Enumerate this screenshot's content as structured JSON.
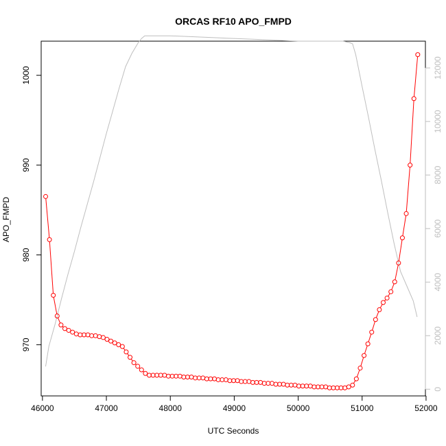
{
  "chart_data": {
    "type": "line",
    "title": "ORCAS RF10 APO_FMPD",
    "xlabel": "UTC Seconds",
    "ylabel": "APO_FMPD",
    "xlim": [
      45980,
      51990
    ],
    "ylim": [
      964.3,
      1003.8
    ],
    "y2lim": [
      -250,
      13000
    ],
    "x_ticks": [
      46000,
      47000,
      48000,
      49000,
      50000,
      51000,
      52000
    ],
    "y_ticks": [
      970,
      980,
      990,
      1000
    ],
    "y2_ticks": [
      0,
      2000,
      4000,
      6000,
      8000,
      10000,
      12000
    ],
    "grid": false,
    "colors": {
      "primary": "#ff0000",
      "secondary": "#bebebe",
      "axes": "#000000"
    },
    "series": [
      {
        "axis": "left",
        "style": "points-lines",
        "x": [
          46050,
          46110,
          46170,
          46230,
          46290,
          46350,
          46410,
          46470,
          46530,
          46590,
          46650,
          46710,
          46770,
          46830,
          46890,
          46950,
          47010,
          47070,
          47130,
          47190,
          47250,
          47310,
          47370,
          47430,
          47490,
          47550,
          47610,
          47670,
          47730,
          47790,
          47850,
          47910,
          47970,
          48030,
          48090,
          48150,
          48210,
          48270,
          48330,
          48390,
          48450,
          48510,
          48570,
          48630,
          48690,
          48750,
          48810,
          48870,
          48930,
          48990,
          49050,
          49110,
          49170,
          49230,
          49290,
          49350,
          49410,
          49470,
          49530,
          49590,
          49650,
          49710,
          49770,
          49830,
          49890,
          49950,
          50010,
          50070,
          50130,
          50190,
          50250,
          50310,
          50370,
          50430,
          50490,
          50550,
          50610,
          50670,
          50730,
          50790,
          50850,
          50910,
          50970,
          51030,
          51090,
          51150,
          51210,
          51270,
          51330,
          51390,
          51450,
          51510,
          51570,
          51630,
          51690,
          51750,
          51810,
          51870
        ],
        "y": [
          986.5,
          981.7,
          975.5,
          973.2,
          972.2,
          971.8,
          971.6,
          971.4,
          971.2,
          971.1,
          971.1,
          971.1,
          971.0,
          971.0,
          970.9,
          970.8,
          970.6,
          970.4,
          970.2,
          970.0,
          969.8,
          969.2,
          968.6,
          968.0,
          967.6,
          967.2,
          966.8,
          966.6,
          966.6,
          966.6,
          966.6,
          966.6,
          966.5,
          966.5,
          966.5,
          966.5,
          966.4,
          966.4,
          966.4,
          966.3,
          966.3,
          966.3,
          966.2,
          966.2,
          966.2,
          966.1,
          966.1,
          966.1,
          966.0,
          966.0,
          966.0,
          965.9,
          965.9,
          965.9,
          965.8,
          965.8,
          965.8,
          965.7,
          965.7,
          965.7,
          965.6,
          965.6,
          965.6,
          965.5,
          965.5,
          965.5,
          965.4,
          965.4,
          965.4,
          965.4,
          965.3,
          965.3,
          965.3,
          965.3,
          965.2,
          965.2,
          965.2,
          965.2,
          965.2,
          965.3,
          965.5,
          966.2,
          967.4,
          968.8,
          970.1,
          971.4,
          972.8,
          973.9,
          974.7,
          975.2,
          975.9,
          977.0,
          979.1,
          981.9,
          984.6,
          990.0,
          997.4,
          1002.3
        ]
      },
      {
        "axis": "right",
        "style": "line",
        "x": [
          46050,
          46100,
          46200,
          46300,
          46400,
          46500,
          46600,
          46700,
          46800,
          46900,
          47000,
          47100,
          47200,
          47300,
          47400,
          47450,
          47500,
          47550,
          47600,
          47650,
          47700,
          48000,
          48500,
          49000,
          49500,
          50000,
          50300,
          50500,
          50700,
          50800,
          50850,
          50900,
          51000,
          51100,
          51200,
          51300,
          51400,
          51500,
          51600,
          51700,
          51800,
          51860
        ],
        "y": [
          850,
          1600,
          2450,
          3400,
          4300,
          5150,
          6050,
          6900,
          7750,
          8650,
          9550,
          10400,
          11250,
          12050,
          12550,
          12750,
          12950,
          13100,
          13200,
          13200,
          13200,
          13200,
          13150,
          13100,
          13050,
          13000,
          13000,
          13000,
          13000,
          12950,
          12900,
          12500,
          11300,
          10150,
          8950,
          7800,
          6600,
          5450,
          4400,
          3850,
          3300,
          2700
        ]
      }
    ]
  }
}
